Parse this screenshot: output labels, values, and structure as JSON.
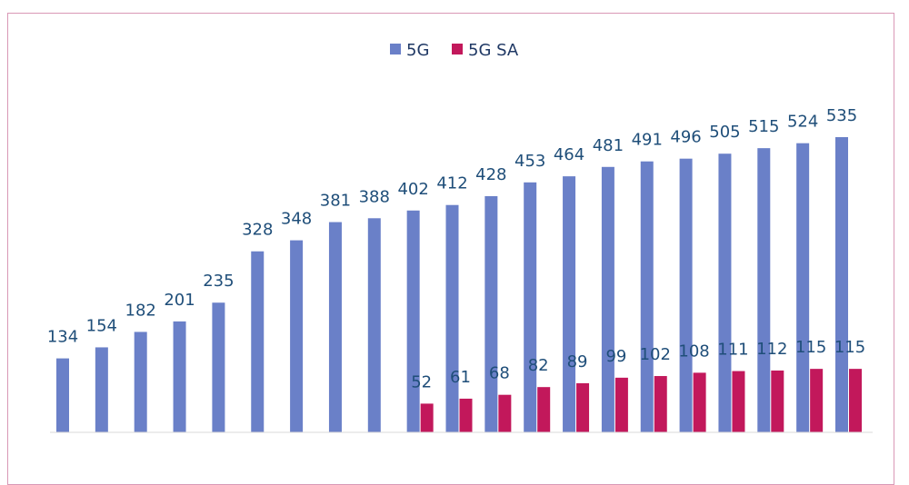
{
  "chart_data": {
    "type": "bar",
    "title": "",
    "xlabel": "",
    "ylabel": "",
    "ylim": [
      0,
      600
    ],
    "grid": false,
    "legend_position": "top-center",
    "series": [
      {
        "name": "5G",
        "color": "#6a80c8",
        "values": [
          134,
          154,
          182,
          201,
          235,
          328,
          348,
          381,
          388,
          402,
          412,
          428,
          453,
          464,
          481,
          491,
          496,
          505,
          515,
          524,
          535
        ]
      },
      {
        "name": "5G SA",
        "color": "#c2185b",
        "values": [
          null,
          null,
          null,
          null,
          null,
          null,
          null,
          null,
          null,
          52,
          61,
          68,
          82,
          89,
          99,
          102,
          108,
          111,
          112,
          115,
          115
        ]
      }
    ]
  }
}
